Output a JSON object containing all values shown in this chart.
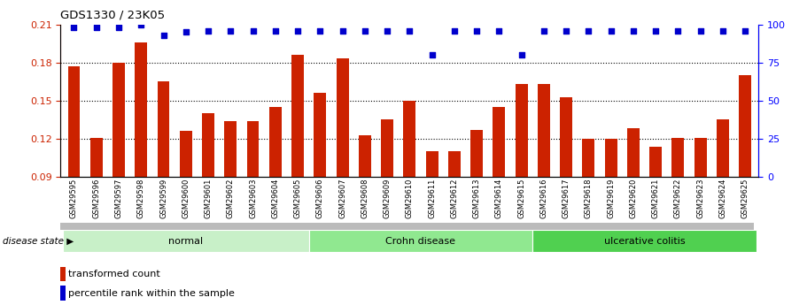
{
  "title": "GDS1330 / 23K05",
  "samples": [
    "GSM29595",
    "GSM29596",
    "GSM29597",
    "GSM29598",
    "GSM29599",
    "GSM29600",
    "GSM29601",
    "GSM29602",
    "GSM29603",
    "GSM29604",
    "GSM29605",
    "GSM29606",
    "GSM29607",
    "GSM29608",
    "GSM29609",
    "GSM29610",
    "GSM29611",
    "GSM29612",
    "GSM29613",
    "GSM29614",
    "GSM29615",
    "GSM29616",
    "GSM29617",
    "GSM29618",
    "GSM29619",
    "GSM29620",
    "GSM29621",
    "GSM29622",
    "GSM29623",
    "GSM29624",
    "GSM29625"
  ],
  "bar_values": [
    0.177,
    0.121,
    0.18,
    0.196,
    0.165,
    0.126,
    0.14,
    0.134,
    0.134,
    0.145,
    0.186,
    0.156,
    0.183,
    0.123,
    0.135,
    0.15,
    0.11,
    0.11,
    0.127,
    0.145,
    0.163,
    0.163,
    0.153,
    0.12,
    0.12,
    0.128,
    0.114,
    0.121,
    0.121,
    0.135,
    0.17
  ],
  "percentile_values": [
    98,
    98,
    98,
    100,
    93,
    95,
    96,
    96,
    96,
    96,
    96,
    96,
    96,
    96,
    96,
    96,
    80,
    96,
    96,
    96,
    80,
    96,
    96,
    96,
    96,
    96,
    96,
    96,
    96,
    96,
    96
  ],
  "groups": [
    {
      "name": "normal",
      "start": 0,
      "end": 10,
      "color": "#c8f0c8"
    },
    {
      "name": "Crohn disease",
      "start": 11,
      "end": 20,
      "color": "#90e890"
    },
    {
      "name": "ulcerative colitis",
      "start": 21,
      "end": 30,
      "color": "#50d050"
    }
  ],
  "bar_color": "#cc2200",
  "dot_color": "#0000cc",
  "ylim_left": [
    0.09,
    0.21
  ],
  "ylim_right": [
    0,
    100
  ],
  "yticks_left": [
    0.09,
    0.12,
    0.15,
    0.18,
    0.21
  ],
  "yticks_right": [
    0,
    25,
    50,
    75,
    100
  ],
  "grid_lines": [
    0.12,
    0.15,
    0.18
  ],
  "disease_state_label": "disease state",
  "legend_bar_label": "transformed count",
  "legend_dot_label": "percentile rank within the sample",
  "background_color": "#ffffff"
}
